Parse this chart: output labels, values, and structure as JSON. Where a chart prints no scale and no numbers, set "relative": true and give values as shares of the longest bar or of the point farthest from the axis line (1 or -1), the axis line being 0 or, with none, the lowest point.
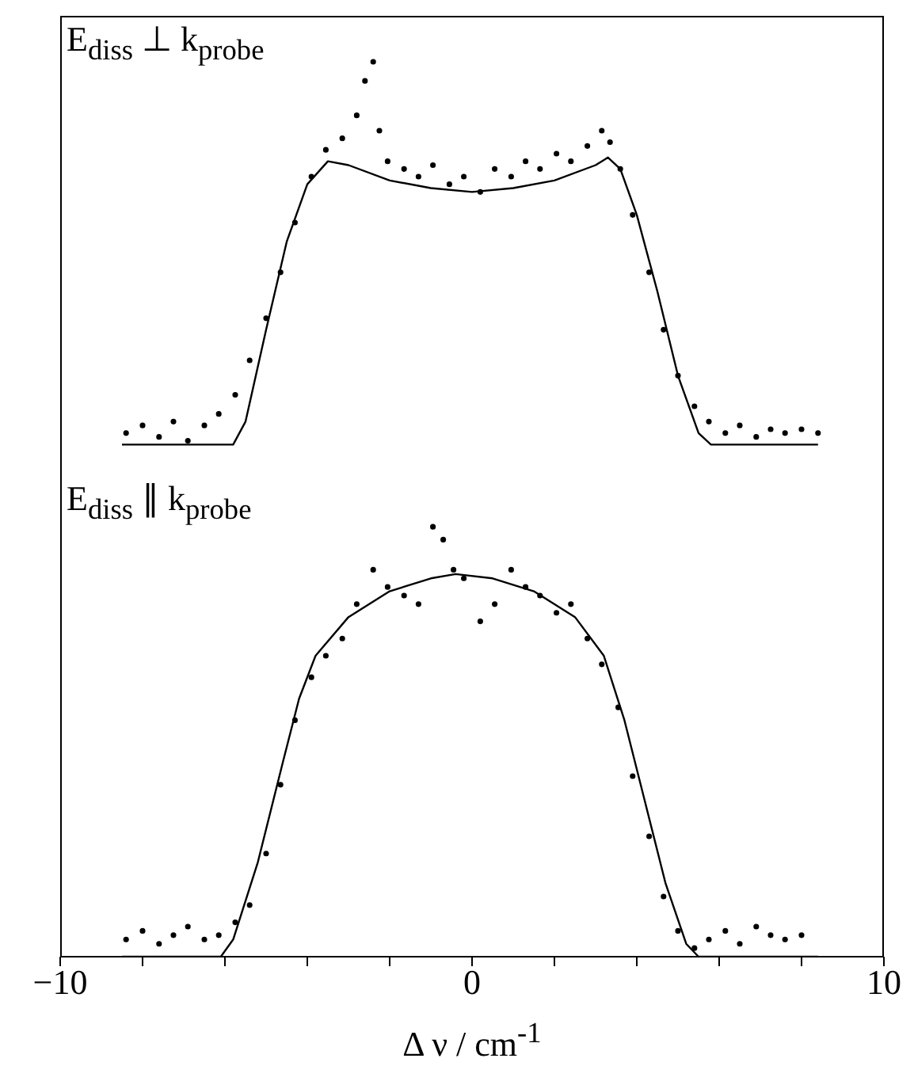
{
  "chart_data": [
    {
      "type": "scatter",
      "title": "E$_{diss}$ ⊥ k$_{probe}$",
      "relative": true,
      "xlim": [
        -10,
        10
      ],
      "tick_labels": false,
      "series": [
        {
          "marker": "circle",
          "color": "#000000",
          "x": [
            -8.4,
            -8.0,
            -7.6,
            -7.25,
            -6.9,
            -6.5,
            -6.15,
            -5.75,
            -5.4,
            -5.0,
            -4.65,
            -4.3,
            -3.9,
            -3.55,
            -3.15,
            -2.8,
            -2.6,
            -2.4,
            -2.25,
            -2.05,
            -1.65,
            -1.3,
            -0.95,
            -0.55,
            -0.2,
            0.2,
            0.55,
            0.95,
            1.3,
            1.65,
            2.05,
            2.4,
            2.8,
            3.15,
            3.35,
            3.6,
            3.9,
            4.3,
            4.65,
            5.0,
            5.4,
            5.75,
            6.15,
            6.5,
            6.9,
            7.25,
            7.6,
            8.0,
            8.4
          ],
          "values": [
            0.03,
            0.05,
            0.02,
            0.06,
            0.01,
            0.05,
            0.08,
            0.13,
            0.22,
            0.33,
            0.45,
            0.58,
            0.7,
            0.77,
            0.8,
            0.86,
            0.95,
            1.0,
            0.82,
            0.74,
            0.72,
            0.7,
            0.73,
            0.68,
            0.7,
            0.66,
            0.72,
            0.7,
            0.74,
            0.72,
            0.76,
            0.74,
            0.78,
            0.82,
            0.79,
            0.72,
            0.6,
            0.45,
            0.3,
            0.18,
            0.1,
            0.06,
            0.03,
            0.05,
            0.02,
            0.04,
            0.03,
            0.04,
            0.03
          ]
        },
        {
          "type": "line",
          "marker": "none",
          "color": "#000000",
          "x": [
            -8.5,
            -5.8,
            -5.5,
            -5.0,
            -4.5,
            -4.0,
            -3.5,
            -3.0,
            -2.0,
            -1.0,
            0,
            1.0,
            2.0,
            3.0,
            3.3,
            3.6,
            4.0,
            4.5,
            5.0,
            5.5,
            5.8,
            8.4
          ],
          "values": [
            0,
            0,
            0.06,
            0.3,
            0.53,
            0.68,
            0.74,
            0.73,
            0.69,
            0.67,
            0.66,
            0.67,
            0.69,
            0.73,
            0.75,
            0.72,
            0.6,
            0.4,
            0.18,
            0.03,
            0,
            0
          ]
        }
      ]
    },
    {
      "type": "scatter",
      "title": "E$_{diss}$ ∥ k$_{probe}$",
      "xlabel": "Δ ν / cm$^{-1}$",
      "relative": true,
      "xlim": [
        -10,
        10
      ],
      "xticks": [
        -10,
        {
          "value": -8,
          "label": null
        },
        {
          "value": -6,
          "label": null
        },
        {
          "value": -4,
          "label": null
        },
        {
          "value": -2,
          "label": null
        },
        0,
        {
          "value": 2,
          "label": null
        },
        {
          "value": 4,
          "label": null
        },
        {
          "value": 6,
          "label": null
        },
        {
          "value": 8,
          "label": null
        },
        10
      ],
      "tick_labels": "x",
      "series": [
        {
          "marker": "circle",
          "color": "#000000",
          "x": [
            -8.4,
            -8.0,
            -7.6,
            -7.25,
            -6.9,
            -6.5,
            -6.15,
            -5.75,
            -5.4,
            -5.0,
            -4.65,
            -4.3,
            -3.9,
            -3.55,
            -3.15,
            -2.8,
            -2.4,
            -2.05,
            -1.65,
            -1.3,
            -0.95,
            -0.7,
            -0.45,
            -0.2,
            0.2,
            0.55,
            0.95,
            1.3,
            1.65,
            2.05,
            2.4,
            2.8,
            3.15,
            3.55,
            3.9,
            4.3,
            4.65,
            5.0,
            5.4,
            5.75,
            6.15,
            6.5,
            6.9,
            7.25,
            7.6,
            8.0
          ],
          "values": [
            0.04,
            0.06,
            0.03,
            0.05,
            0.07,
            0.04,
            0.05,
            0.08,
            0.12,
            0.24,
            0.4,
            0.55,
            0.65,
            0.7,
            0.74,
            0.82,
            0.9,
            0.86,
            0.84,
            0.82,
            1.0,
            0.97,
            0.9,
            0.88,
            0.78,
            0.82,
            0.9,
            0.86,
            0.84,
            0.8,
            0.82,
            0.74,
            0.68,
            0.58,
            0.42,
            0.28,
            0.14,
            0.06,
            0.02,
            0.04,
            0.06,
            0.03,
            0.07,
            0.05,
            0.04,
            0.05
          ]
        },
        {
          "type": "line",
          "marker": "none",
          "color": "#000000",
          "x": [
            -8.5,
            -6.1,
            -5.8,
            -5.2,
            -4.6,
            -4.2,
            -3.8,
            -3.0,
            -2.0,
            -1.0,
            -0.4,
            0.5,
            1.5,
            2.5,
            3.2,
            3.7,
            4.2,
            4.7,
            5.2,
            5.5,
            8.4
          ],
          "values": [
            0,
            0,
            0.04,
            0.22,
            0.45,
            0.6,
            0.7,
            0.79,
            0.85,
            0.88,
            0.89,
            0.88,
            0.85,
            0.79,
            0.7,
            0.55,
            0.36,
            0.17,
            0.03,
            0,
            0
          ]
        }
      ]
    }
  ]
}
